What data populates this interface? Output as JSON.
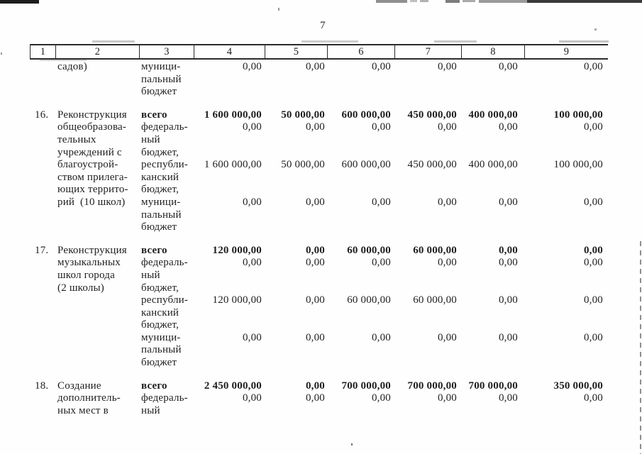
{
  "page": {
    "number": "7"
  },
  "table": {
    "header_cols": [
      "1",
      "2",
      "3",
      "4",
      "5",
      "6",
      "7",
      "8",
      "9"
    ],
    "rows": [
      {
        "num": "",
        "name_lines": [
          "садов)"
        ],
        "budget_lines": [
          "муници-",
          "пальный",
          "бюджет"
        ],
        "values": {
          "c4": [
            {
              "v": "0,00",
              "l": 0,
              "b": 0
            }
          ],
          "c5": [
            {
              "v": "0,00",
              "l": 0,
              "b": 0
            }
          ],
          "c6": [
            {
              "v": "0,00",
              "l": 0,
              "b": 0
            }
          ],
          "c7": [
            {
              "v": "0,00",
              "l": 0,
              "b": 0
            }
          ],
          "c8": [
            {
              "v": "0,00",
              "l": 0,
              "b": 0
            }
          ],
          "c9": [
            {
              "v": "0,00",
              "l": 0,
              "b": 0
            }
          ]
        }
      },
      {
        "num": "16.",
        "name_lines": [
          "Реконструкция",
          "общеобразова-",
          "тельных",
          "учреждений с",
          "благоустрой-",
          "ством прилега-",
          "ющих террито-",
          "рий  (10 школ)"
        ],
        "budget_lines": [
          "всего",
          "федераль-",
          "ный",
          "бюджет,",
          "республи-",
          "канский",
          "бюджет,",
          "муници-",
          "пальный",
          "бюджет"
        ],
        "values": {
          "c4": [
            {
              "v": "1 600 000,00",
              "l": 0,
              "b": 1
            },
            {
              "v": "0,00",
              "l": 1,
              "b": 0
            },
            {
              "v": "1 600 000,00",
              "l": 4,
              "b": 0
            },
            {
              "v": "0,00",
              "l": 7,
              "b": 0
            }
          ],
          "c5": [
            {
              "v": "50 000,00",
              "l": 0,
              "b": 1
            },
            {
              "v": "0,00",
              "l": 1,
              "b": 0
            },
            {
              "v": "50 000,00",
              "l": 4,
              "b": 0
            },
            {
              "v": "0,00",
              "l": 7,
              "b": 0
            }
          ],
          "c6": [
            {
              "v": "600 000,00",
              "l": 0,
              "b": 1
            },
            {
              "v": "0,00",
              "l": 1,
              "b": 0
            },
            {
              "v": "600 000,00",
              "l": 4,
              "b": 0
            },
            {
              "v": "0,00",
              "l": 7,
              "b": 0
            }
          ],
          "c7": [
            {
              "v": "450 000,00",
              "l": 0,
              "b": 1
            },
            {
              "v": "0,00",
              "l": 1,
              "b": 0
            },
            {
              "v": "450 000,00",
              "l": 4,
              "b": 0
            },
            {
              "v": "0,00",
              "l": 7,
              "b": 0
            }
          ],
          "c8": [
            {
              "v": "400 000,00",
              "l": 0,
              "b": 1
            },
            {
              "v": "0,00",
              "l": 1,
              "b": 0
            },
            {
              "v": "400 000,00",
              "l": 4,
              "b": 0
            },
            {
              "v": "0,00",
              "l": 7,
              "b": 0
            }
          ],
          "c9": [
            {
              "v": "100 000,00",
              "l": 0,
              "b": 1
            },
            {
              "v": "0,00",
              "l": 1,
              "b": 0
            },
            {
              "v": "100 000,00",
              "l": 4,
              "b": 0
            },
            {
              "v": "0,00",
              "l": 7,
              "b": 0
            }
          ]
        }
      },
      {
        "num": "17.",
        "name_lines": [
          "Реконструкция",
          "музыкальных",
          "школ города",
          "(2 школы)"
        ],
        "budget_lines": [
          "всего",
          "федераль-",
          "ный",
          "бюджет,",
          "республи-",
          "канский",
          "бюджет,",
          "муници-",
          "пальный",
          "бюджет"
        ],
        "values": {
          "c4": [
            {
              "v": "120 000,00",
              "l": 0,
              "b": 1
            },
            {
              "v": "0,00",
              "l": 1,
              "b": 0
            },
            {
              "v": "120 000,00",
              "l": 4,
              "b": 0
            },
            {
              "v": "0,00",
              "l": 7,
              "b": 0
            }
          ],
          "c5": [
            {
              "v": "0,00",
              "l": 0,
              "b": 1
            },
            {
              "v": "0,00",
              "l": 1,
              "b": 0
            },
            {
              "v": "0,00",
              "l": 4,
              "b": 0
            },
            {
              "v": "0,00",
              "l": 7,
              "b": 0
            }
          ],
          "c6": [
            {
              "v": "60 000,00",
              "l": 0,
              "b": 1
            },
            {
              "v": "0,00",
              "l": 1,
              "b": 0
            },
            {
              "v": "60 000,00",
              "l": 4,
              "b": 0
            },
            {
              "v": "0,00",
              "l": 7,
              "b": 0
            }
          ],
          "c7": [
            {
              "v": "60 000,00",
              "l": 0,
              "b": 1
            },
            {
              "v": "0,00",
              "l": 1,
              "b": 0
            },
            {
              "v": "60 000,00",
              "l": 4,
              "b": 0
            },
            {
              "v": "0,00",
              "l": 7,
              "b": 0
            }
          ],
          "c8": [
            {
              "v": "0,00",
              "l": 0,
              "b": 1
            },
            {
              "v": "0,00",
              "l": 1,
              "b": 0
            },
            {
              "v": "0,00",
              "l": 4,
              "b": 0
            },
            {
              "v": "0,00",
              "l": 7,
              "b": 0
            }
          ],
          "c9": [
            {
              "v": "0,00",
              "l": 0,
              "b": 1
            },
            {
              "v": "0,00",
              "l": 1,
              "b": 0
            },
            {
              "v": "0,00",
              "l": 4,
              "b": 0
            },
            {
              "v": "0,00",
              "l": 7,
              "b": 0
            }
          ]
        }
      },
      {
        "num": "18.",
        "name_lines": [
          "Создание",
          "дополнитель-",
          "ных мест в"
        ],
        "budget_lines": [
          "всего",
          "федераль-",
          "ный"
        ],
        "values": {
          "c4": [
            {
              "v": "2 450 000,00",
              "l": 0,
              "b": 1
            },
            {
              "v": "0,00",
              "l": 1,
              "b": 0
            }
          ],
          "c5": [
            {
              "v": "0,00",
              "l": 0,
              "b": 1
            },
            {
              "v": "0,00",
              "l": 1,
              "b": 0
            }
          ],
          "c6": [
            {
              "v": "700 000,00",
              "l": 0,
              "b": 1
            },
            {
              "v": "0,00",
              "l": 1,
              "b": 0
            }
          ],
          "c7": [
            {
              "v": "700 000,00",
              "l": 0,
              "b": 1
            },
            {
              "v": "0,00",
              "l": 1,
              "b": 0
            }
          ],
          "c8": [
            {
              "v": "700 000,00",
              "l": 0,
              "b": 1
            },
            {
              "v": "0,00",
              "l": 1,
              "b": 0
            }
          ],
          "c9": [
            {
              "v": "350 000,00",
              "l": 0,
              "b": 1
            },
            {
              "v": "0,00",
              "l": 1,
              "b": 0
            }
          ]
        }
      }
    ]
  }
}
